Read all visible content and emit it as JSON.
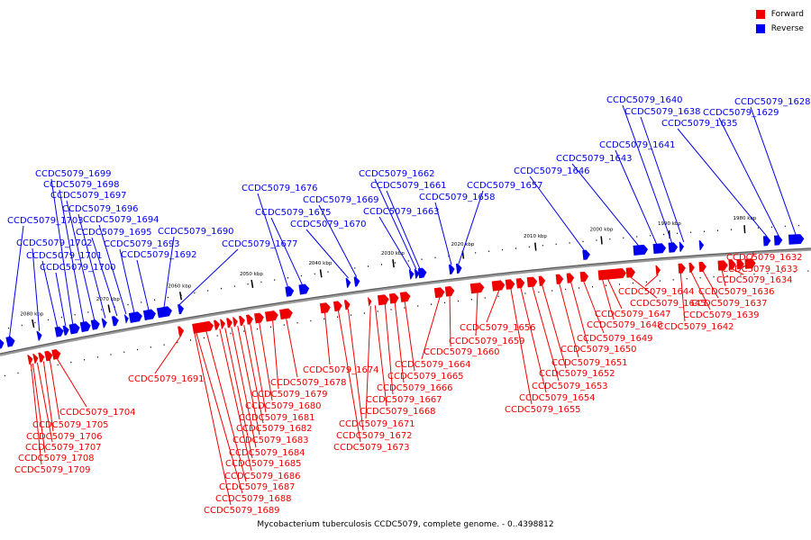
{
  "legend": [
    {
      "label": "Forward",
      "color": "#ee0000"
    },
    {
      "label": "Reverse",
      "color": "#0000ee"
    }
  ],
  "caption": "Mycobacterium tuberculosis CCDC5079, complete genome. - 0..4398812",
  "ticks": [
    "1980 kbp",
    "1990 kbp",
    "2000 kbp",
    "2010 kbp",
    "2020 kbp",
    "2030 kbp",
    "2040 kbp",
    "2050 kbp",
    "2060 kbp",
    "2070 kbp",
    "2080 kbp"
  ],
  "reverse_genes": [
    "CCDC5079_1628",
    "CCDC5079_1629",
    "CCDC5079_1635",
    "CCDC5079_1638",
    "CCDC5079_1640",
    "CCDC5079_1641",
    "CCDC5079_1643",
    "CCDC5079_1646",
    "CCDC5079_1657",
    "CCDC5079_1658",
    "CCDC5079_1661",
    "CCDC5079_1662",
    "CCDC5079_1663",
    "CCDC5079_1669",
    "CCDC5079_1670",
    "CCDC5079_1675",
    "CCDC5079_1676",
    "CCDC5079_1677",
    "CCDC5079_1690",
    "CCDC5079_1692",
    "CCDC5079_1693",
    "CCDC5079_1694",
    "CCDC5079_1695",
    "CCDC5079_1696",
    "CCDC5079_1697",
    "CCDC5079_1698",
    "CCDC5079_1699",
    "CCDC5079_1700",
    "CCDC5079_1701",
    "CCDC5079_1702",
    "CCDC5079_1703"
  ],
  "forward_genes": [
    "CCDC5079_1632",
    "CCDC5079_1633",
    "CCDC5079_1634",
    "CCDC5079_1636",
    "CCDC5079_1637",
    "CCDC5079_1639",
    "CCDC5079_1642",
    "CCDC5079_1644",
    "CCDC5079_1645",
    "CCDC5079_1647",
    "CCDC5079_1648",
    "CCDC5079_1649",
    "CCDC5079_1650",
    "CCDC5079_1651",
    "CCDC5079_1652",
    "CCDC5079_1653",
    "CCDC5079_1654",
    "CCDC5079_1655",
    "CCDC5079_1656",
    "CCDC5079_1659",
    "CCDC5079_1660",
    "CCDC5079_1664",
    "CCDC5079_1665",
    "CCDC5079_1666",
    "CCDC5079_1667",
    "CCDC5079_1668",
    "CCDC5079_1671",
    "CCDC5079_1672",
    "CCDC5079_1673",
    "CCDC5079_1674",
    "CCDC5079_1678",
    "CCDC5079_1679",
    "CCDC5079_1680",
    "CCDC5079_1681",
    "CCDC5079_1682",
    "CCDC5079_1683",
    "CCDC5079_1684",
    "CCDC5079_1685",
    "CCDC5079_1686",
    "CCDC5079_1687",
    "CCDC5079_1688",
    "CCDC5079_1689",
    "CCDC5079_1691",
    "CCDC5079_1704",
    "CCDC5079_1705",
    "CCDC5079_1706",
    "CCDC5079_1707",
    "CCDC5079_1708",
    "CCDC5079_1709"
  ]
}
